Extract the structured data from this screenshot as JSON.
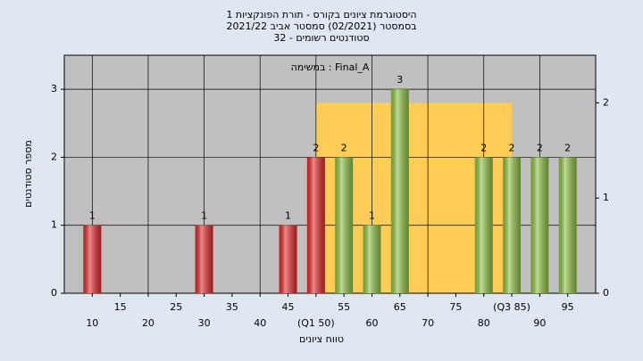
{
  "chart_data": {
    "type": "bar",
    "title": "היסטוגרמת ציונים בקורס - תורת הפונקציות 1",
    "subtitle": "בסמסטר  (02/2021)  סמסטר אביב 2021/22",
    "subtitle2": "סטודנטים רשומים - 32",
    "annotation": "במשימה : Final_A",
    "y_label": "מספר סטודנטים",
    "x_label": "טווח ציונים",
    "x": [
      10,
      30,
      45,
      50,
      55,
      60,
      65,
      80,
      85,
      90,
      95
    ],
    "values": [
      1,
      1,
      1,
      2,
      2,
      1,
      3,
      2,
      2,
      2,
      2
    ],
    "colors": [
      "#e02828",
      "#e02828",
      "#e02828",
      "#e02828",
      "#8cbf40",
      "#8cbf40",
      "#8cbf40",
      "#8cbf40",
      "#8cbf40",
      "#8cbf40",
      "#8cbf40"
    ],
    "xlim": [
      5,
      100
    ],
    "xticks": [
      10,
      15,
      20,
      25,
      30,
      35,
      40,
      45,
      {
        "value": 50,
        "label": "(Q1 50)"
      },
      55,
      60,
      65,
      70,
      75,
      80,
      {
        "value": 85,
        "label": "(Q3 85)"
      },
      90,
      95
    ],
    "ylim": [
      0,
      3.5
    ],
    "yticks": [
      0,
      1,
      2,
      3
    ],
    "y2lim": [
      0,
      2.5
    ],
    "y2ticks": [
      0,
      1,
      2
    ],
    "quartile_box": {
      "x": [
        50,
        85
      ],
      "y2": 2,
      "color": "#ffcc55"
    },
    "grid": true
  }
}
